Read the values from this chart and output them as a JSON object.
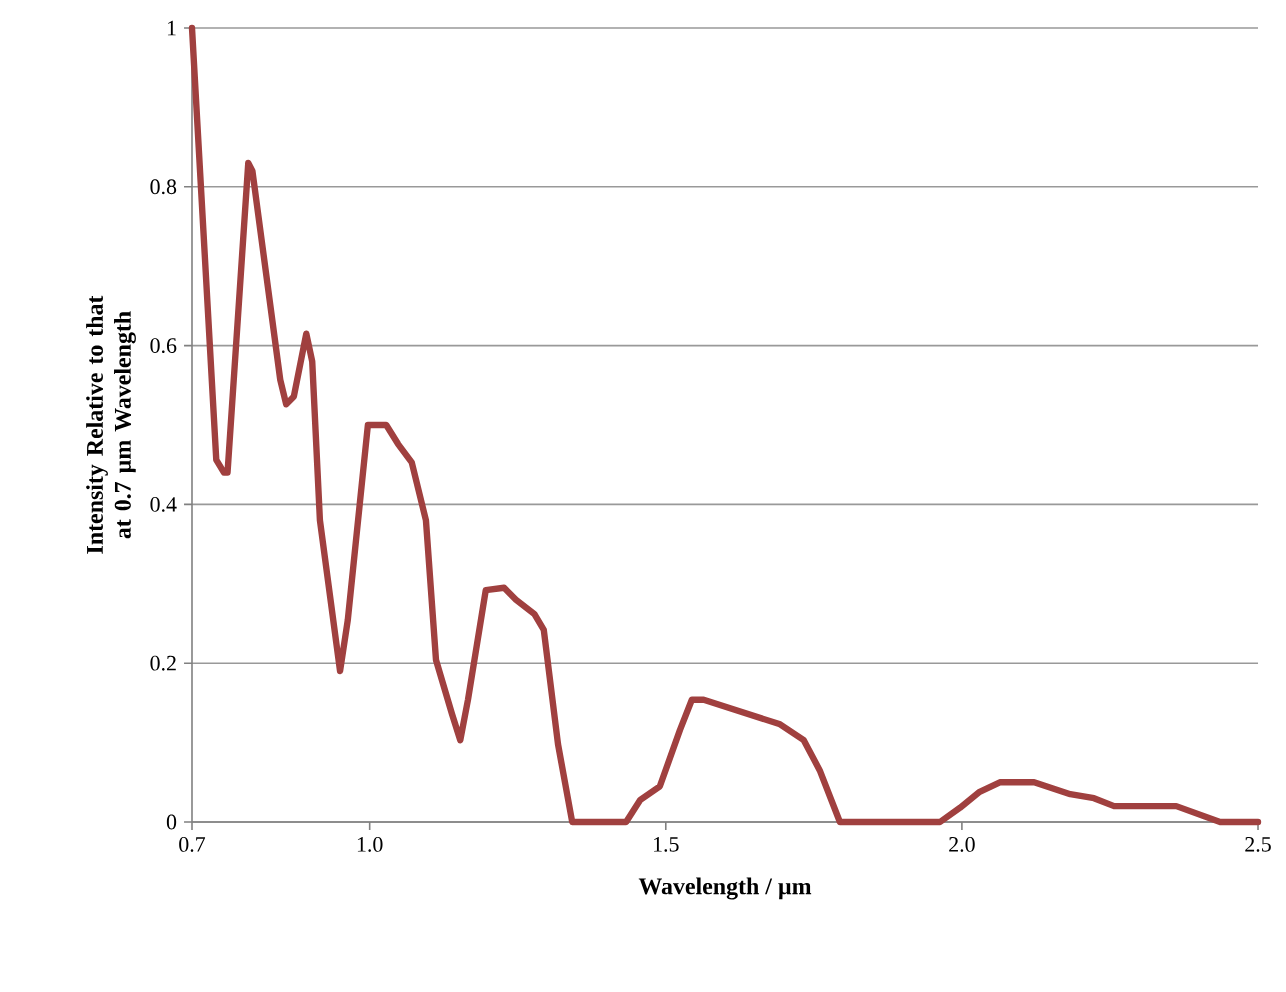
{
  "chart_data": {
    "type": "line",
    "xlabel": "Wavelength / µm",
    "ylabel": "Intensity Relative to that at 0.7 µm Wavelength",
    "xlim": [
      0.7,
      2.5
    ],
    "ylim": [
      0,
      1
    ],
    "xticks": [
      0.7,
      {
        "value": 1.0,
        "label": "1.0"
      },
      1.5,
      {
        "value": 2.0,
        "label": "2.0"
      },
      2.5
    ],
    "yticks": [
      0,
      0.2,
      0.4,
      0.6,
      0.8,
      1
    ],
    "grid": "y",
    "marker": "none",
    "line_style": "solid",
    "series": [
      {
        "color": "#a0403f",
        "x": [
          0.7,
          0.741,
          0.754,
          0.76,
          0.795,
          0.802,
          0.849,
          0.859,
          0.872,
          0.893,
          0.903,
          0.916,
          0.95,
          0.963,
          0.997,
          1.028,
          1.048,
          1.071,
          1.095,
          1.112,
          1.139,
          1.153,
          1.166,
          1.196,
          1.227,
          1.247,
          1.278,
          1.294,
          1.318,
          1.342,
          1.433,
          1.457,
          1.49,
          1.524,
          1.544,
          1.564,
          1.693,
          1.733,
          1.76,
          1.794,
          1.963,
          1.997,
          2.03,
          2.064,
          2.122,
          2.183,
          2.223,
          2.257,
          2.362,
          2.436,
          2.5
        ],
        "values": [
          1.0,
          0.456,
          0.44,
          0.44,
          0.83,
          0.82,
          0.557,
          0.526,
          0.536,
          0.615,
          0.58,
          0.38,
          0.19,
          0.254,
          0.5,
          0.5,
          0.476,
          0.453,
          0.38,
          0.204,
          0.136,
          0.103,
          0.154,
          0.292,
          0.295,
          0.28,
          0.262,
          0.242,
          0.098,
          0,
          0,
          0.028,
          0.045,
          0.116,
          0.154,
          0.154,
          0.123,
          0.103,
          0.065,
          0,
          0,
          0.018,
          0.038,
          0.05,
          0.05,
          0.035,
          0.03,
          0.02,
          0.02,
          0,
          0
        ]
      }
    ]
  }
}
